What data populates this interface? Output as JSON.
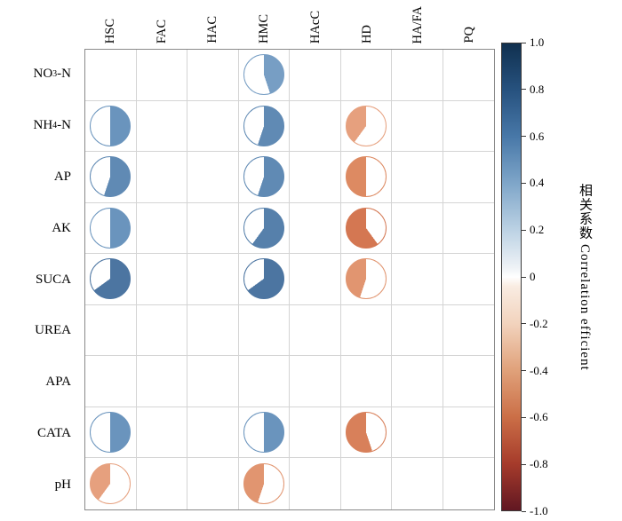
{
  "chart_data": {
    "type": "heatmap",
    "subtype": "correlation-pie-matrix",
    "columns": [
      "HSC",
      "FAC",
      "HAC",
      "HMC",
      "HAcC",
      "HD",
      "HA/FA",
      "PQ"
    ],
    "rows": [
      "NO₃-N",
      "NH₄-N",
      "AP",
      "AK",
      "SUCA",
      "UREA",
      "APA",
      "CATA",
      "pH"
    ],
    "values": [
      [
        null,
        null,
        null,
        0.45,
        null,
        null,
        null,
        null
      ],
      [
        0.5,
        null,
        null,
        0.55,
        null,
        -0.4,
        null,
        null
      ],
      [
        0.55,
        null,
        null,
        0.55,
        null,
        -0.5,
        null,
        null
      ],
      [
        0.5,
        null,
        null,
        0.6,
        null,
        -0.6,
        null,
        null
      ],
      [
        0.65,
        null,
        null,
        0.65,
        null,
        -0.45,
        null,
        null
      ],
      [
        null,
        null,
        null,
        null,
        null,
        null,
        null,
        null
      ],
      [
        null,
        null,
        null,
        null,
        null,
        null,
        null,
        null
      ],
      [
        0.5,
        null,
        null,
        0.5,
        null,
        -0.55,
        null,
        null
      ],
      [
        -0.4,
        null,
        null,
        -0.45,
        null,
        null,
        null,
        null
      ]
    ],
    "colorbar": {
      "min": -1,
      "max": 1,
      "ticks": [
        "1.0",
        "0.8",
        "0.6",
        "0.4",
        "0.2",
        "0",
        "-0.2",
        "-0.4",
        "-0.6",
        "-0.8",
        "-1.0"
      ],
      "label": "相关系数 Correlation efficient"
    },
    "colors": {
      "positive_max": "#16365c",
      "negative_max": "#7a1c24",
      "zero": "#f7f7f7"
    },
    "legend_position": "right",
    "grid": true,
    "title": ""
  }
}
